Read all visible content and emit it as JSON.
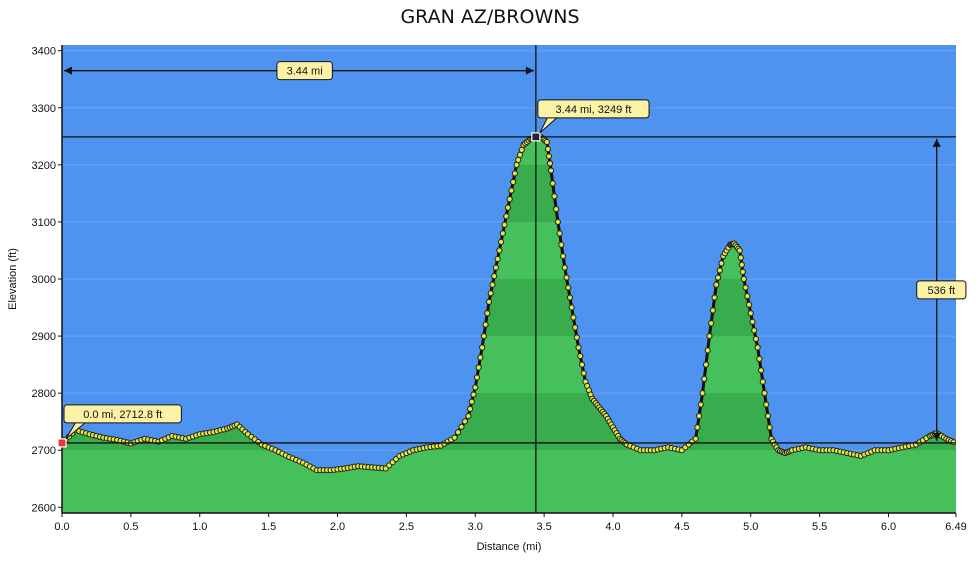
{
  "title": "GRAN AZ/BROWNS",
  "chart_data": {
    "type": "area",
    "title": "GRAN AZ/BROWNS",
    "xlabel": "Distance   (mi)",
    "ylabel": "Elevation (ft)",
    "xlim": [
      0,
      6.49
    ],
    "ylim": [
      2590,
      3410
    ],
    "x_ticks": [
      "0.0",
      "0.5",
      "1.0",
      "1.5",
      "2.0",
      "2.5",
      "3.0",
      "3.5",
      "4.0",
      "4.5",
      "5.0",
      "5.5",
      "6.0",
      "6.49"
    ],
    "y_ticks": [
      "2600",
      "2700",
      "2800",
      "2900",
      "3000",
      "3100",
      "3200",
      "3300",
      "3400"
    ],
    "grid": true,
    "colors": {
      "background": "#4f93f0",
      "fill_light": "#46c05a",
      "fill_dark": "#2f9a45",
      "markers": "#e4e83a",
      "line": "#111111"
    },
    "series": [
      {
        "x": [
          0.0,
          0.1,
          0.2,
          0.3,
          0.4,
          0.5,
          0.6,
          0.7,
          0.8,
          0.9,
          1.0,
          1.1,
          1.2,
          1.27,
          1.35,
          1.45,
          1.55,
          1.65,
          1.75,
          1.85,
          1.95,
          2.05,
          2.15,
          2.25,
          2.35,
          2.45,
          2.55,
          2.65,
          2.75,
          2.85,
          2.95,
          3.0,
          3.05,
          3.1,
          3.15,
          3.2,
          3.25,
          3.3,
          3.35,
          3.4,
          3.44,
          3.48,
          3.52,
          3.55,
          3.6,
          3.65,
          3.7,
          3.75,
          3.8,
          3.85,
          3.9,
          3.95,
          4.0,
          4.05,
          4.1,
          4.2,
          4.3,
          4.4,
          4.5,
          4.6,
          4.65,
          4.7,
          4.75,
          4.8,
          4.85,
          4.88,
          4.92,
          4.95,
          5.0,
          5.05,
          5.1,
          5.15,
          5.2,
          5.25,
          5.3,
          5.4,
          5.5,
          5.6,
          5.7,
          5.8,
          5.9,
          6.0,
          6.1,
          6.2,
          6.3,
          6.35,
          6.42,
          6.49
        ],
        "y": [
          2712.8,
          2735,
          2728,
          2722,
          2718,
          2712,
          2720,
          2715,
          2725,
          2720,
          2728,
          2732,
          2738,
          2745,
          2728,
          2710,
          2700,
          2688,
          2678,
          2665,
          2665,
          2668,
          2672,
          2670,
          2668,
          2690,
          2700,
          2705,
          2708,
          2722,
          2760,
          2810,
          2880,
          2960,
          3020,
          3080,
          3140,
          3200,
          3235,
          3245,
          3249,
          3248,
          3240,
          3190,
          3100,
          3020,
          2950,
          2880,
          2820,
          2790,
          2775,
          2760,
          2740,
          2720,
          2710,
          2700,
          2700,
          2705,
          2700,
          2720,
          2800,
          2900,
          2990,
          3040,
          3060,
          3062,
          3050,
          3000,
          2940,
          2880,
          2800,
          2720,
          2700,
          2695,
          2700,
          2705,
          2700,
          2700,
          2695,
          2690,
          2700,
          2700,
          2705,
          2710,
          2725,
          2730,
          2720,
          2712
        ]
      }
    ],
    "annotations": {
      "start_point": "0.0 mi, 2712.8 ft",
      "peak_point": "3.44 mi, 3249 ft",
      "distance_span": "3.44 mi",
      "elevation_gain": "536 ft",
      "start": {
        "x": 0.0,
        "y": 2712.8
      },
      "peak": {
        "x": 3.44,
        "y": 3249
      },
      "gain_at_x": 6.35
    }
  }
}
